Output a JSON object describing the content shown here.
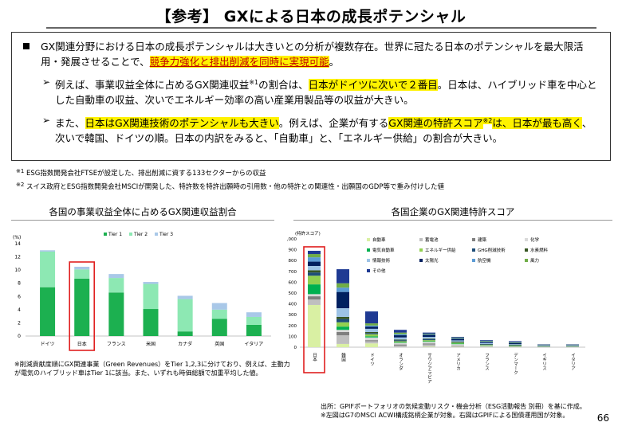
{
  "title": "【参考】 GXによる日本の成長ポテンシャル",
  "summary": {
    "main": {
      "plain1": "GX関連分野における日本の成長ポテンシャルは大きいとの分析が複数存在。世界に冠たる日本のポテンシャルを最大限活用・発展させることで、",
      "highlight": "競争力強化と排出削減を同時に実現可能",
      "plain2": "。"
    },
    "sub1": {
      "plain1": "例えば、事業収益全体に占めるGX関連収益",
      "sup": "※1",
      "plain2": "の割合は、",
      "highlight": "日本がドイツに次いで２番目",
      "plain3": "。日本は、ハイブリッド車を中心とした自動車の収益、次いでエネルギー効率の高い産業用製品等の収益が大きい。"
    },
    "sub2": {
      "plain1": "また、",
      "highlight1": "日本はGX関連技術のポテンシャルも大きい",
      "plain2": "。例えば、企業が有する",
      "highlight2a": "GX関連の特許スコア",
      "sup": "※2",
      "highlight2b": "は、日本が最も高く",
      "plain3": "、次いで韓国、ドイツの順。日本の内訳をみると、「自動車」と、「エネルギー供給」の割合が大きい。"
    }
  },
  "footnotes": {
    "fn1_mark": "※1",
    "fn1": " ESG指数開発会社FTSEが設定した、排出削減に資する133セクターからの収益",
    "fn2_mark": "※2",
    "fn2": " スイス政府とESG指数開発会社MSCIが開発した、特許数を特許出願時の引用数・他の特許との関連性・出願国のGDP等で重み付けした値"
  },
  "left_chart_title": "各国の事業収益全体に占めるGX関連収益割合",
  "right_chart_title": "各国企業のGX関連特許スコア",
  "left_note": "※削減貢献度順にGX関連事業（Green Revenues）をTier 1,2,3に分けており、例えば、主動力が電気のハイブリッド車はTier 1に該当。また、いずれも時価総額で加重平均した値。",
  "source": {
    "line1": "出所：GPIFポートフォリオの気候変動リスク・機会分析（ESG活動報告 別冊）を基に作成。",
    "line2": "※左図はG7のMSCI ACWI構成銘柄企業が対象。右図はGPIFによる国債運用国が対象。"
  },
  "page_number": "66",
  "chart_data": [
    {
      "type": "bar",
      "stacked": true,
      "title": "各国の事業収益全体に占めるGX関連収益割合",
      "ylabel": "(%)",
      "ylim": [
        0,
        14
      ],
      "yticks": [
        0,
        2,
        4,
        6,
        8,
        10,
        12,
        14
      ],
      "categories": [
        "ドイツ",
        "日本",
        "フランス",
        "米国",
        "カナダ",
        "英国",
        "イタリア"
      ],
      "highlight_category": "日本",
      "legend_position": "top",
      "series": [
        {
          "name": "Tier 1",
          "color": "#1cb050",
          "values": [
            7.4,
            8.7,
            6.6,
            4.1,
            0.7,
            2.6,
            1.7
          ]
        },
        {
          "name": "Tier 2",
          "color": "#8de8b3",
          "values": [
            5.4,
            1.4,
            2.2,
            3.8,
            4.9,
            1.4,
            1.2
          ]
        },
        {
          "name": "Tier 3",
          "color": "#a9c8e8",
          "values": [
            0.2,
            0.4,
            0.6,
            0.3,
            0.5,
            1.0,
            0.7
          ]
        }
      ]
    },
    {
      "type": "bar",
      "stacked": true,
      "title": "各国企業のGX関連特許スコア",
      "ylabel": "(特許スコア)",
      "ylim": [
        0,
        1000
      ],
      "yticks": [
        0,
        100,
        200,
        300,
        400,
        500,
        600,
        700,
        800,
        900,
        1000
      ],
      "ytick_labels": [
        "0",
        "100",
        "200",
        "300",
        "400",
        "500",
        "600",
        "700",
        "800",
        "900",
        "1,000"
      ],
      "categories": [
        "日本",
        "韓国",
        "ドイツ",
        "オランダ",
        "サウジアラビア",
        "アメリカ",
        "フランス",
        "デンマーク",
        "イギリス",
        "イタリア"
      ],
      "highlight_category": "日本",
      "legend_position": "top-right",
      "series": [
        {
          "name": "自動車",
          "color": "#d9f0a3",
          "values": [
            390,
            30,
            35,
            0,
            5,
            3,
            3,
            0,
            0,
            0
          ]
        },
        {
          "name": "蓄電池",
          "color": "#bfbfbf",
          "values": [
            50,
            80,
            20,
            15,
            20,
            5,
            3,
            2,
            2,
            2
          ]
        },
        {
          "name": "建築",
          "color": "#7f7f7f",
          "values": [
            30,
            30,
            10,
            10,
            10,
            5,
            2,
            2,
            2,
            2
          ]
        },
        {
          "name": "化学",
          "color": "#d9d9d9",
          "values": [
            20,
            20,
            25,
            15,
            15,
            15,
            5,
            3,
            2,
            2
          ]
        },
        {
          "name": "電気自動車",
          "color": "#00b050",
          "values": [
            90,
            30,
            10,
            5,
            5,
            5,
            3,
            3,
            2,
            2
          ]
        },
        {
          "name": "エネルギー供給",
          "color": "#92d050",
          "values": [
            80,
            40,
            20,
            10,
            10,
            10,
            5,
            5,
            2,
            2
          ]
        },
        {
          "name": "GHG削減技術",
          "color": "#1f4e79",
          "values": [
            30,
            30,
            10,
            10,
            10,
            5,
            5,
            5,
            2,
            2
          ]
        },
        {
          "name": "水素燃料",
          "color": "#375623",
          "values": [
            20,
            20,
            10,
            5,
            5,
            5,
            3,
            3,
            2,
            2
          ]
        },
        {
          "name": "情報技術",
          "color": "#9dc3e6",
          "values": [
            40,
            80,
            30,
            20,
            15,
            10,
            10,
            5,
            3,
            3
          ]
        },
        {
          "name": "太陽光",
          "color": "#002060",
          "values": [
            40,
            150,
            20,
            20,
            20,
            15,
            10,
            10,
            3,
            3
          ]
        },
        {
          "name": "航空機",
          "color": "#5b9bd5",
          "values": [
            40,
            40,
            10,
            10,
            5,
            5,
            5,
            2,
            2,
            2
          ]
        },
        {
          "name": "風力",
          "color": "#70ad47",
          "values": [
            30,
            40,
            20,
            15,
            5,
            5,
            5,
            5,
            2,
            2
          ]
        },
        {
          "name": "その他",
          "color": "#1f3a93",
          "values": [
            30,
            130,
            110,
            25,
            10,
            7,
            6,
            10,
            3,
            3
          ]
        }
      ]
    }
  ]
}
